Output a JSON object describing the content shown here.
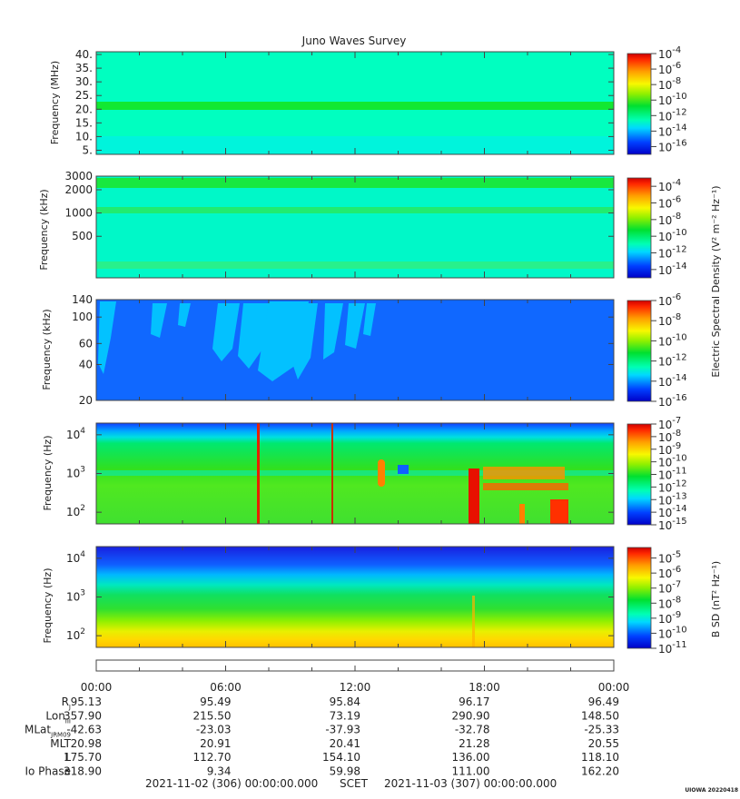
{
  "chart_data": {
    "type": "heatmap",
    "title": "Juno Waves Survey",
    "time_axis": {
      "tick_labels": [
        "00:00",
        "06:00",
        "12:00",
        "18:00",
        "00:00"
      ],
      "range_hours": [
        0,
        24
      ]
    },
    "panels": [
      {
        "name": "Frequency (MHz)",
        "ylabel": "Frequency (MHz)",
        "ylim": [
          3.5,
          41
        ],
        "y_scale": "linear",
        "y_ticks": [
          {
            "value": 40,
            "label": "40."
          },
          {
            "value": 35,
            "label": "35."
          },
          {
            "value": 30,
            "label": "30."
          },
          {
            "value": 25,
            "label": "25."
          },
          {
            "value": 20,
            "label": "20."
          },
          {
            "value": 15,
            "label": "15."
          },
          {
            "value": 10,
            "label": "10."
          },
          {
            "value": 5,
            "label": "5."
          }
        ],
        "colorbar_exponents": [
          -4,
          -6,
          -8,
          -10,
          -12,
          -14,
          -16
        ],
        "colorbar_range": [
          -17,
          -4
        ]
      },
      {
        "name": "Frequency (kHz)",
        "ylabel": "Frequency (kHz)",
        "ylim": [
          145,
          3000
        ],
        "y_scale": "log",
        "y_ticks": [
          {
            "value": 3000,
            "label": "3000"
          },
          {
            "value": 2000,
            "label": "2000"
          },
          {
            "value": 1000,
            "label": "1000"
          },
          {
            "value": 500,
            "label": "500"
          }
        ],
        "colorbar_exponents": [
          -4,
          -6,
          -8,
          -10,
          -12,
          -14
        ],
        "colorbar_range": [
          -15,
          -3
        ]
      },
      {
        "name": "Frequency (kHz)",
        "ylabel": "Frequency (kHz)",
        "ylim": [
          20,
          140
        ],
        "y_scale": "log",
        "y_ticks": [
          {
            "value": 140,
            "label": "140"
          },
          {
            "value": 100,
            "label": "100"
          },
          {
            "value": 60,
            "label": "60"
          },
          {
            "value": 40,
            "label": "40"
          },
          {
            "value": 20,
            "label": "20"
          }
        ],
        "colorbar_exponents": [
          -6,
          -8,
          -10,
          -12,
          -14,
          -16
        ],
        "colorbar_range": [
          -16,
          -6
        ]
      },
      {
        "name": "Frequency (Hz)",
        "ylabel": "Frequency (Hz)",
        "ylim": [
          50,
          20000
        ],
        "y_scale": "log",
        "y_ticks": [
          {
            "value": 10000,
            "label": "10",
            "exp": "4"
          },
          {
            "value": 1000,
            "label": "10",
            "exp": "3"
          },
          {
            "value": 100,
            "label": "10",
            "exp": "2"
          }
        ],
        "colorbar_exponents": [
          -7,
          -8,
          -9,
          -10,
          -11,
          -12,
          -13,
          -14,
          -15
        ],
        "colorbar_range": [
          -15,
          -7
        ]
      },
      {
        "name": "Frequency (Hz)",
        "ylabel": "Frequency (Hz)",
        "ylim": [
          50,
          20000
        ],
        "y_scale": "log",
        "y_ticks": [
          {
            "value": 10000,
            "label": "10",
            "exp": "4"
          },
          {
            "value": 1000,
            "label": "10",
            "exp": "3"
          },
          {
            "value": 100,
            "label": "10",
            "exp": "2"
          }
        ],
        "colorbar_exponents": [
          -5,
          -6,
          -7,
          -8,
          -9,
          -10,
          -11
        ],
        "colorbar_range": [
          -11,
          -4.3
        ]
      }
    ],
    "colorbar_labels": {
      "electric": "Electric Spectral Density (V² m⁻² Hz⁻¹)",
      "magnetic": "B SD (nT² Hz⁻¹)"
    }
  },
  "ephemeris": {
    "rows": [
      {
        "label": "R",
        "sub": "J",
        "values": [
          "95.13",
          "95.49",
          "95.84",
          "96.17",
          "96.49"
        ]
      },
      {
        "label": "Lon",
        "sub": "III",
        "values": [
          "357.90",
          "215.50",
          "73.19",
          "290.90",
          "148.50"
        ]
      },
      {
        "label": "MLat",
        "sub": "JRM09",
        "values": [
          "-42.63",
          "-23.03",
          "-37.93",
          "-32.78",
          "-25.33"
        ]
      },
      {
        "label": "MLT",
        "sub": "",
        "values": [
          "20.98",
          "20.91",
          "20.41",
          "21.28",
          "20.55"
        ]
      },
      {
        "label": "L",
        "sub": "",
        "values": [
          "175.70",
          "112.70",
          "154.10",
          "136.00",
          "118.10"
        ]
      },
      {
        "label": "Io Phase",
        "sub": "",
        "values": [
          "318.90",
          "9.34",
          "59.98",
          "111.00",
          "162.20"
        ]
      }
    ]
  },
  "footer": {
    "start": "2021-11-02 (306) 00:00:00.000",
    "scet": "SCET",
    "end": "2021-11-03 (307) 00:00:00.000",
    "stamp": "UIOWA 20220418"
  }
}
